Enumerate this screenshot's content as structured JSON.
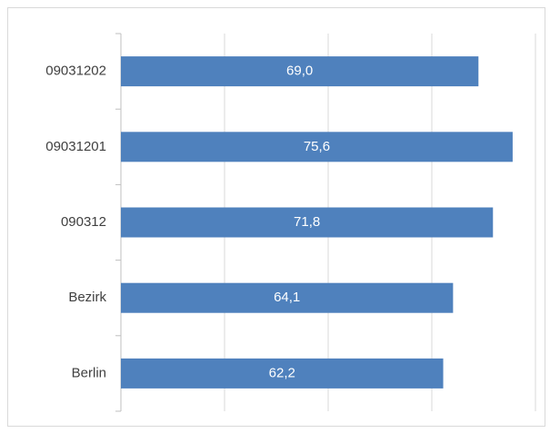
{
  "chart_data": {
    "type": "bar",
    "orientation": "horizontal",
    "categories": [
      "09031202",
      "09031201",
      "090312",
      "Bezirk",
      "Berlin"
    ],
    "values": [
      69.0,
      75.6,
      71.8,
      64.1,
      62.2
    ],
    "value_labels": [
      "69,0",
      "75,6",
      "71,8",
      "64,1",
      "62,2"
    ],
    "color": "#4f81bd",
    "xlim": [
      0,
      80
    ],
    "xticks": [
      0,
      20,
      40,
      60,
      80
    ],
    "grid": true
  }
}
